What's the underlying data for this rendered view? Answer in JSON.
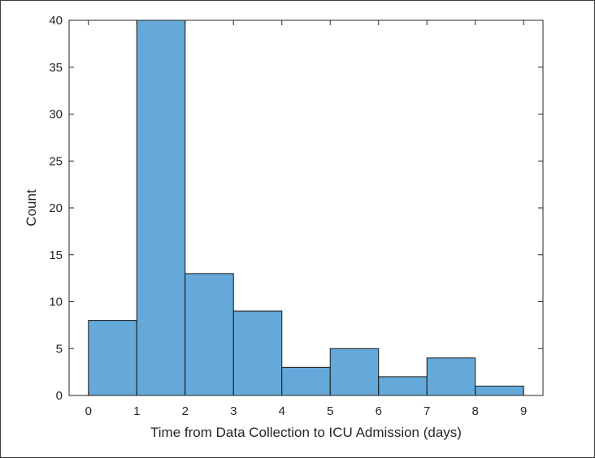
{
  "chart_data": {
    "type": "bar",
    "subtype": "histogram",
    "bin_edges": [
      0,
      1,
      2,
      3,
      4,
      5,
      6,
      7,
      8,
      9
    ],
    "values": [
      8,
      40,
      13,
      9,
      3,
      5,
      2,
      4,
      1
    ],
    "xlabel": "Time from Data Collection to ICU Admission (days)",
    "ylabel": "Count",
    "xlim": [
      -0.4,
      9.4
    ],
    "ylim": [
      0,
      40
    ],
    "xticks": [
      "0",
      "1",
      "2",
      "3",
      "4",
      "5",
      "6",
      "7",
      "8",
      "9"
    ],
    "yticks": [
      "0",
      "5",
      "10",
      "15",
      "20",
      "25",
      "30",
      "35",
      "40"
    ],
    "grid": false,
    "colors": {
      "bar_fill": "#64a9d9",
      "bar_edge": "#1a1a1a",
      "axis": "#262626"
    }
  }
}
